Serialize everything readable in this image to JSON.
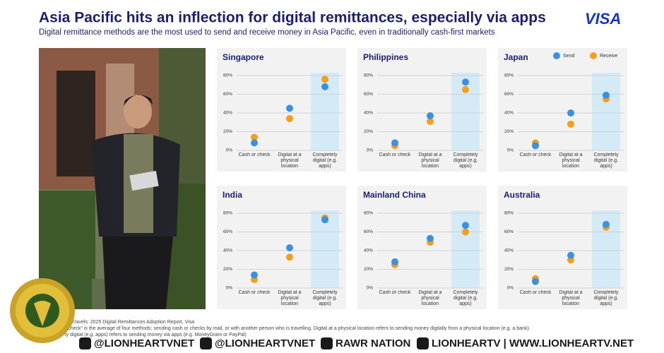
{
  "header": {
    "title": "Asia Pacific hits an inflection for digital remittances, especially via apps",
    "subtitle": "Digital remittance methods are the most used to send and receive money in Asia Pacific, even in traditionally cash-first markets",
    "logo": "VISA"
  },
  "chart_data": [
    {
      "type": "dot",
      "title": "Singapore",
      "categories": [
        "Cash or check",
        "Digital at a physical location",
        "Completely digital (e.g. apps)"
      ],
      "highlight": 2,
      "series": [
        {
          "color": "#f59e1a",
          "values": [
            14,
            34,
            76
          ]
        },
        {
          "color": "#3b8fe5",
          "values": [
            8,
            45,
            68
          ]
        }
      ],
      "ylim": [
        0,
        80
      ],
      "yticks": [
        {
          "value": 0,
          "label": "0%"
        },
        {
          "value": 20,
          "label": "20%"
        },
        {
          "value": 40,
          "label": "40%"
        },
        {
          "value": 60,
          "label": "60%"
        },
        {
          "value": 80,
          "label": "80%"
        }
      ],
      "grid": true
    },
    {
      "type": "dot",
      "title": "Philippines",
      "categories": [
        "Cash or check",
        "Digital at a physical location",
        "Completely digital (e.g. apps)"
      ],
      "highlight": 2,
      "series": [
        {
          "color": "#f59e1a",
          "values": [
            5,
            31,
            65
          ]
        },
        {
          "color": "#3b8fe5",
          "values": [
            8,
            37,
            73
          ]
        }
      ],
      "ylim": [
        0,
        80
      ],
      "yticks": [
        {
          "value": 0,
          "label": "0%"
        },
        {
          "value": 20,
          "label": "20%"
        },
        {
          "value": 40,
          "label": "40%"
        },
        {
          "value": 60,
          "label": "60%"
        },
        {
          "value": 80,
          "label": "80%"
        }
      ],
      "grid": true
    },
    {
      "type": "dot",
      "title": "Japan",
      "categories": [
        "Cash or check",
        "Digital at a physical location",
        "Completely digital (e.g. apps)"
      ],
      "highlight": 2,
      "legend": "top-right",
      "series": [
        {
          "name": "Receive",
          "color": "#f59e1a",
          "values": [
            8,
            28,
            55
          ]
        },
        {
          "name": "Send",
          "color": "#3b8fe5",
          "values": [
            5,
            40,
            59
          ]
        }
      ],
      "ylim": [
        0,
        80
      ],
      "yticks": [
        {
          "value": 0,
          "label": "0%"
        },
        {
          "value": 20,
          "label": "20%"
        },
        {
          "value": 40,
          "label": "40%"
        },
        {
          "value": 60,
          "label": "60%"
        },
        {
          "value": 80,
          "label": "80%"
        }
      ],
      "grid": true
    },
    {
      "type": "dot",
      "title": "India",
      "categories": [
        "Cash or check",
        "Digital at a physical location",
        "Completely digital (e.g. apps)"
      ],
      "highlight": 2,
      "series": [
        {
          "color": "#f59e1a",
          "values": [
            9,
            33,
            75
          ]
        },
        {
          "color": "#3b8fe5",
          "values": [
            14,
            43,
            73
          ]
        }
      ],
      "ylim": [
        0,
        80
      ],
      "yticks": [
        {
          "value": 0,
          "label": "0%"
        },
        {
          "value": 20,
          "label": "20%"
        },
        {
          "value": 40,
          "label": "40%"
        },
        {
          "value": 60,
          "label": "60%"
        },
        {
          "value": 80,
          "label": "80%"
        }
      ],
      "grid": true
    },
    {
      "type": "dot",
      "title": "Mainland China",
      "categories": [
        "Cash or check",
        "Digital at a physical location",
        "Completely digital (e.g. apps)"
      ],
      "highlight": 2,
      "series": [
        {
          "color": "#f59e1a",
          "values": [
            25,
            49,
            60
          ]
        },
        {
          "color": "#3b8fe5",
          "values": [
            28,
            53,
            67
          ]
        }
      ],
      "ylim": [
        0,
        80
      ],
      "yticks": [
        {
          "value": 0,
          "label": "0%"
        },
        {
          "value": 20,
          "label": "20%"
        },
        {
          "value": 40,
          "label": "40%"
        },
        {
          "value": 60,
          "label": "60%"
        },
        {
          "value": 80,
          "label": "80%"
        }
      ],
      "grid": true
    },
    {
      "type": "dot",
      "title": "Australia",
      "categories": [
        "Cash or check",
        "Digital at a physical location",
        "Completely digital (e.g. apps)"
      ],
      "highlight": 2,
      "series": [
        {
          "color": "#f59e1a",
          "values": [
            10,
            30,
            65
          ]
        },
        {
          "color": "#3b8fe5",
          "values": [
            7,
            35,
            68
          ]
        }
      ],
      "ylim": [
        0,
        80
      ],
      "yticks": [
        {
          "value": 0,
          "label": "0%"
        },
        {
          "value": 20,
          "label": "20%"
        },
        {
          "value": 40,
          "label": "40%"
        },
        {
          "value": 60,
          "label": "60%"
        },
        {
          "value": 80,
          "label": "80%"
        }
      ],
      "grid": true
    }
  ],
  "footer": {
    "notes": [
      "ey Travels: 2025 Digital Remittances Adoption Report, Visa",
      "r check” is the average of four methods: sending cash or checks by mail, or with another person who is travelling. Digital at a physical location refers to sending money digitally from a physical location (e.g. a bank).",
      "ly digital (e.g. apps) refers to sending money via apps (e.g. MoneyGram or PayPal)"
    ],
    "social": [
      "@LIONHEARTVNET",
      "@LIONHEARTVNET",
      "RAWR NATION",
      "LIONHEARTV | WWW.LIONHEARTV.NET"
    ]
  }
}
